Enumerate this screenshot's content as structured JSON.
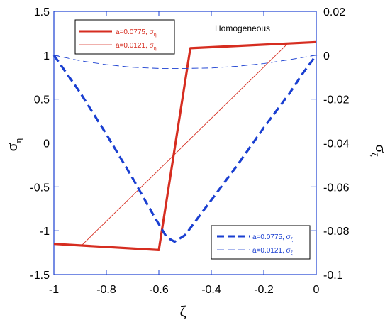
{
  "chart_data": {
    "type": "line",
    "title": "",
    "annotation": "Homogeneous",
    "xlabel": "ζ",
    "ylabel_left": "σ",
    "ylabel_left_sub": "η",
    "ylabel_right": "σ",
    "ylabel_right_sub": "ζ",
    "xlim": [
      -1,
      0
    ],
    "ylim_left": [
      -1.5,
      1.5
    ],
    "ylim_right": [
      -0.1,
      0.02
    ],
    "x_ticks": [
      "-1",
      "-0.8",
      "-0.6",
      "-0.4",
      "-0.2",
      "0"
    ],
    "x_tick_values": [
      -1,
      -0.8,
      -0.6,
      -0.4,
      -0.2,
      0
    ],
    "y_left_ticks": [
      "1.5",
      "1",
      "0.5",
      "0",
      "-0.5",
      "-1",
      "-1.5"
    ],
    "y_left_tick_values": [
      1.5,
      1,
      0.5,
      0,
      -0.5,
      -1,
      -1.5
    ],
    "y_right_ticks": [
      "0.02",
      "0",
      "-0.02",
      "-0.04",
      "-0.06",
      "-0.08",
      "-0.1"
    ],
    "y_right_tick_values": [
      0.02,
      0,
      -0.02,
      -0.04,
      -0.06,
      -0.08,
      -0.1
    ],
    "grid": false,
    "legend_top": {
      "position": "top-left",
      "entries": [
        {
          "label": "a=0.0775, σ",
          "sub": "η"
        },
        {
          "label": "a=0.0121, σ",
          "sub": "η"
        }
      ]
    },
    "legend_bottom": {
      "position": "bottom-right",
      "entries": [
        {
          "label": "a=0.0775, σ",
          "sub": "ζ"
        },
        {
          "label": "a=0.0121, σ",
          "sub": "ζ"
        }
      ]
    },
    "series": [
      {
        "axis": "left",
        "color": "#d62d20",
        "style": "solid",
        "weight": "thick",
        "x": [
          -1,
          -0.6,
          -0.48,
          0
        ],
        "y": [
          -1.15,
          -1.22,
          1.08,
          1.15
        ]
      },
      {
        "axis": "left",
        "color": "#d62d20",
        "style": "solid",
        "weight": "thin",
        "x": [
          -0.895,
          -0.11
        ],
        "y": [
          -1.17,
          1.13
        ]
      },
      {
        "axis": "right",
        "color": "#1a3fd1",
        "style": "dashed",
        "weight": "thick",
        "x": [
          -1,
          -0.9,
          -0.8,
          -0.7,
          -0.62,
          -0.57,
          -0.54,
          -0.5,
          -0.4,
          -0.3,
          -0.2,
          -0.1,
          -0.05,
          0
        ],
        "y": [
          0.0,
          -0.017,
          -0.036,
          -0.056,
          -0.073,
          -0.083,
          -0.085,
          -0.082,
          -0.066,
          -0.05,
          -0.033,
          -0.017,
          -0.008,
          0.0
        ]
      },
      {
        "axis": "right",
        "color": "#1a3fd1",
        "style": "dashed",
        "weight": "thin",
        "x": [
          -1,
          -0.9,
          -0.8,
          -0.7,
          -0.6,
          -0.5,
          -0.4,
          -0.3,
          -0.2,
          -0.1,
          0
        ],
        "y": [
          0.0,
          -0.0025,
          -0.0043,
          -0.0055,
          -0.006,
          -0.006,
          -0.0058,
          -0.005,
          -0.0038,
          -0.002,
          0.0
        ]
      }
    ]
  }
}
